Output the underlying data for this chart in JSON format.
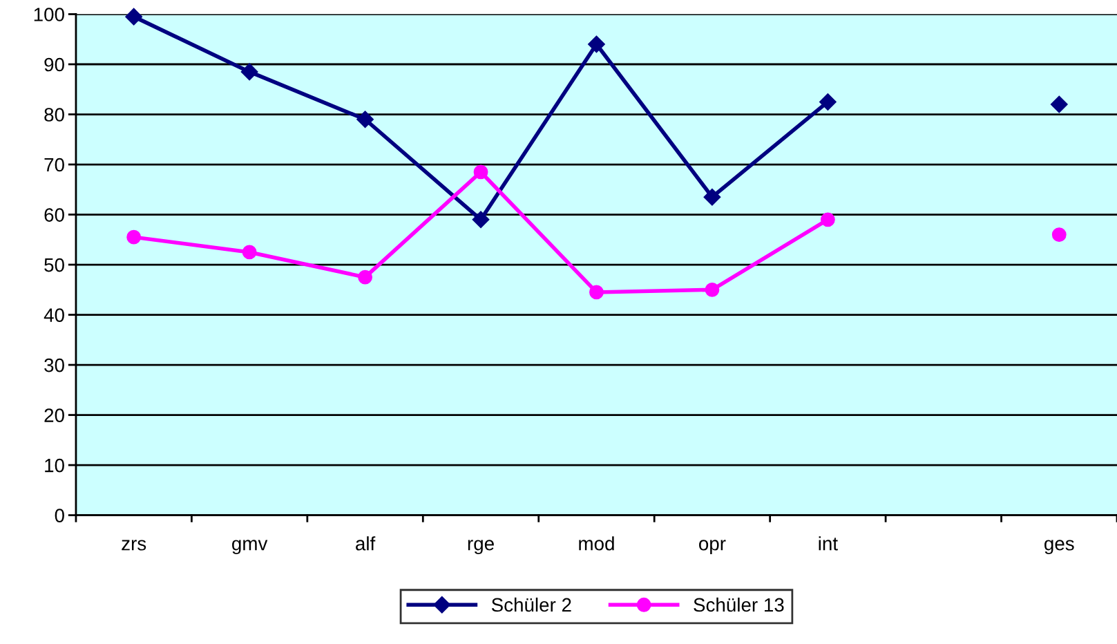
{
  "chart_data": {
    "type": "line",
    "categories": [
      "zrs",
      "gmv",
      "alf",
      "rge",
      "mod",
      "opr",
      "int",
      null,
      "ges"
    ],
    "series": [
      {
        "name": "Schüler 2",
        "color": "#000080",
        "marker": "diamond",
        "values": [
          99.5,
          88.5,
          79,
          59,
          94,
          63.5,
          82.5,
          null,
          82
        ]
      },
      {
        "name": "Schüler 13",
        "color": "#ff00ff",
        "marker": "circle",
        "values": [
          55.5,
          52.5,
          47.5,
          68.5,
          44.5,
          45,
          59,
          null,
          56
        ]
      }
    ],
    "ylim": [
      0,
      100
    ],
    "yticks": [
      0,
      10,
      20,
      30,
      40,
      50,
      60,
      70,
      80,
      90,
      100
    ],
    "grid": "y",
    "legend": "bottom",
    "line_style": "solid"
  }
}
